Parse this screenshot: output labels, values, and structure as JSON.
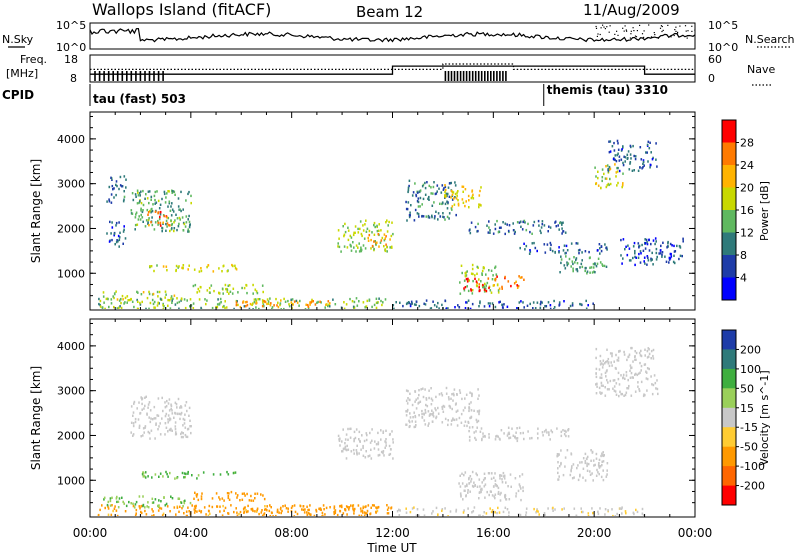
{
  "header": {
    "title": "Wallops Island (fitACF)",
    "beam": "Beam 12",
    "date": "11/Aug/2009"
  },
  "labels": {
    "nsky": "N.Sky",
    "nsearch": "N.Search",
    "freq_line1": "Freq.",
    "freq_line2": "[MHz]",
    "nave": "Nave",
    "cpid": "CPID",
    "time_axis": "Time UT",
    "slant_range_power": "Slant Range [km]",
    "slant_range_velocity": "Slant Range [km]"
  },
  "noise_panel": {
    "left_ticks": [
      "10^5",
      "10^0"
    ],
    "right_ticks": [
      "10^5",
      "10^0"
    ]
  },
  "freq_panel": {
    "left_ticks": [
      "18",
      "8"
    ],
    "right_ticks": [
      "60",
      "0"
    ],
    "freq_segments": [
      {
        "start": 0,
        "end": 12.0,
        "mhz": 10.9
      },
      {
        "start": 12.0,
        "end": 22.0,
        "mhz": 13.9
      },
      {
        "start": 22.0,
        "end": 24.0,
        "mhz": 10.9
      }
    ],
    "nave_segments": [
      {
        "start": 0,
        "end": 14.0,
        "nave": 28
      },
      {
        "start": 14.0,
        "end": 16.8,
        "nave": 40
      },
      {
        "start": 16.8,
        "end": 24.0,
        "nave": 28
      }
    ]
  },
  "cpid": [
    {
      "label": "tau (fast) 503",
      "start_hour": 0
    },
    {
      "label": "themis (tau) 3310",
      "start_hour": 18.0
    }
  ],
  "chart_data": [
    {
      "type": "heatmap",
      "quantity": "Power",
      "colorbar_label": "Power [dB]",
      "colorbar_ticks": [
        "28",
        "24",
        "20",
        "16",
        "12",
        "8",
        "4"
      ],
      "colorbar_colors": [
        "#ff0000",
        "#ff7a00",
        "#ffb300",
        "#c8d800",
        "#5fb85f",
        "#2f7a7a",
        "#1e3ca8",
        "#0000ff"
      ],
      "xlabel": "Time UT",
      "x_ticks": [
        "00:00",
        "04:00",
        "08:00",
        "12:00",
        "16:00",
        "20:00",
        "00:00"
      ],
      "xlim": [
        0,
        24
      ],
      "ylabel": "Slant Range [km]",
      "y_ticks": [
        "4000",
        "3000",
        "2000",
        "1000"
      ],
      "ylim": [
        180,
        4600
      ],
      "regions": [
        {
          "t0": 0.3,
          "t1": 11.8,
          "r0": 200,
          "r1": 450,
          "v": 13
        },
        {
          "t0": 5.5,
          "t1": 9.5,
          "r0": 250,
          "r1": 400,
          "v": 22
        },
        {
          "t0": 0.5,
          "t1": 3.5,
          "r0": 400,
          "r1": 600,
          "v": 15
        },
        {
          "t0": 4.0,
          "t1": 7.0,
          "r0": 550,
          "r1": 750,
          "v": 14
        },
        {
          "t0": 12.0,
          "t1": 20.0,
          "r0": 200,
          "r1": 400,
          "v": 6
        },
        {
          "t0": 2.0,
          "t1": 5.8,
          "r0": 1050,
          "r1": 1200,
          "v": 16
        },
        {
          "t0": 1.6,
          "t1": 4.0,
          "r0": 1950,
          "r1": 2900,
          "v": 11
        },
        {
          "t0": 2.2,
          "t1": 3.2,
          "r0": 2050,
          "r1": 2400,
          "v": 25
        },
        {
          "t0": 0.6,
          "t1": 1.4,
          "r0": 2600,
          "r1": 3200,
          "v": 7
        },
        {
          "t0": 0.6,
          "t1": 1.4,
          "r0": 1600,
          "r1": 2200,
          "v": 6
        },
        {
          "t0": 9.8,
          "t1": 12.0,
          "r0": 1500,
          "r1": 2200,
          "v": 14
        },
        {
          "t0": 11.0,
          "t1": 12.0,
          "r0": 1600,
          "r1": 1900,
          "v": 22
        },
        {
          "t0": 12.5,
          "t1": 14.5,
          "r0": 2200,
          "r1": 3100,
          "v": 8
        },
        {
          "t0": 14.0,
          "t1": 15.5,
          "r0": 2500,
          "r1": 3000,
          "v": 18
        },
        {
          "t0": 14.6,
          "t1": 16.2,
          "r0": 550,
          "r1": 1200,
          "v": 14
        },
        {
          "t0": 14.8,
          "t1": 16.0,
          "r0": 600,
          "r1": 900,
          "v": 29
        },
        {
          "t0": 16.0,
          "t1": 17.2,
          "r0": 650,
          "r1": 950,
          "v": 24
        },
        {
          "t0": 15.0,
          "t1": 19.0,
          "r0": 1900,
          "r1": 2200,
          "v": 7
        },
        {
          "t0": 17.0,
          "t1": 20.5,
          "r0": 1450,
          "r1": 1700,
          "v": 6
        },
        {
          "t0": 18.5,
          "t1": 20.5,
          "r0": 1000,
          "r1": 1400,
          "v": 10
        },
        {
          "t0": 20.0,
          "t1": 21.2,
          "r0": 2900,
          "r1": 3500,
          "v": 16
        },
        {
          "t0": 20.5,
          "t1": 22.5,
          "r0": 3300,
          "r1": 4000,
          "v": 6
        },
        {
          "t0": 21.0,
          "t1": 23.5,
          "r0": 1200,
          "r1": 1800,
          "v": 5
        }
      ]
    },
    {
      "type": "heatmap",
      "quantity": "Velocity",
      "colorbar_label": "Velocity [m s^-1]",
      "colorbar_ticks": [
        "200",
        "100",
        "50",
        "15",
        "-15",
        "-50",
        "-100",
        "-200"
      ],
      "colorbar_colors": [
        "#1e3ca8",
        "#2f7a7a",
        "#3fae3f",
        "#9ad05a",
        "#c8c8c8",
        "#ffcc33",
        "#ff9900",
        "#ff6600",
        "#ff0000"
      ],
      "xlabel": "Time UT",
      "x_ticks": [
        "00:00",
        "04:00",
        "08:00",
        "12:00",
        "16:00",
        "20:00",
        "00:00"
      ],
      "xlim": [
        0,
        24
      ],
      "ylabel": "Slant Range [km]",
      "y_ticks": [
        "4000",
        "3000",
        "2000",
        "1000"
      ],
      "ylim": [
        180,
        4600
      ],
      "regions": [
        {
          "t0": 0.3,
          "t1": 12.0,
          "r0": 200,
          "r1": 450,
          "v": -40
        },
        {
          "t0": 6.0,
          "t1": 11.5,
          "r0": 250,
          "r1": 450,
          "v": -60
        },
        {
          "t0": 4.0,
          "t1": 7.0,
          "r0": 550,
          "r1": 750,
          "v": -55
        },
        {
          "t0": 0.5,
          "t1": 4.0,
          "r0": 400,
          "r1": 650,
          "v": 30
        },
        {
          "t0": 2.0,
          "t1": 5.8,
          "r0": 1050,
          "r1": 1200,
          "v": 35
        },
        {
          "t0": 1.6,
          "t1": 4.0,
          "r0": 1950,
          "r1": 2900,
          "v": 0
        },
        {
          "t0": 9.8,
          "t1": 12.0,
          "r0": 1500,
          "r1": 2200,
          "v": 0
        },
        {
          "t0": 12.5,
          "t1": 15.5,
          "r0": 2200,
          "r1": 3100,
          "v": 0
        },
        {
          "t0": 14.6,
          "t1": 17.2,
          "r0": 550,
          "r1": 1200,
          "v": 0
        },
        {
          "t0": 15.0,
          "t1": 19.0,
          "r0": 1900,
          "r1": 2200,
          "v": 0
        },
        {
          "t0": 18.5,
          "t1": 20.5,
          "r0": 1000,
          "r1": 1700,
          "v": 0
        },
        {
          "t0": 20.0,
          "t1": 22.5,
          "r0": 2900,
          "r1": 4000,
          "v": 0
        },
        {
          "t0": 12.0,
          "t1": 22.0,
          "r0": 200,
          "r1": 400,
          "v": -10
        }
      ]
    }
  ]
}
